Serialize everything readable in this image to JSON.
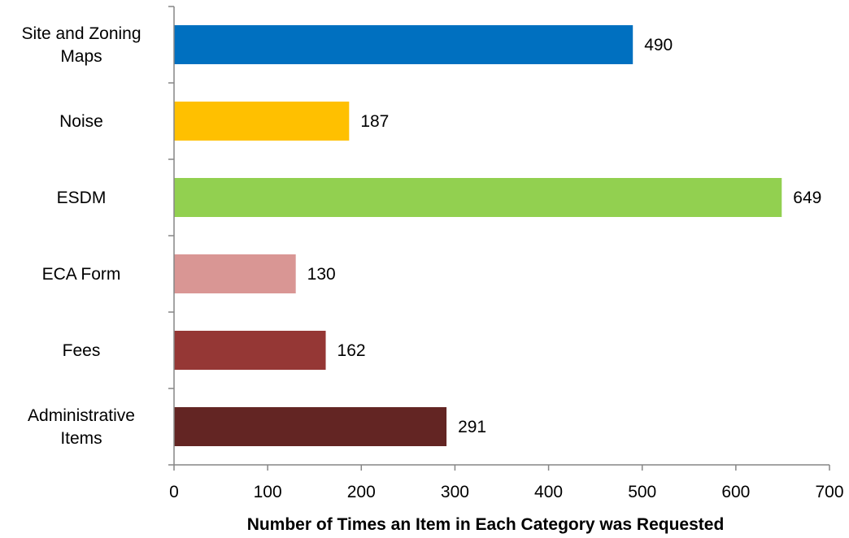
{
  "chart_data": {
    "type": "bar",
    "orientation": "horizontal",
    "title": "",
    "xlabel": "Number of Times an Item in Each Category was Requested",
    "ylabel": "",
    "xlim": [
      0,
      700
    ],
    "x_ticks": [
      0,
      100,
      200,
      300,
      400,
      500,
      600,
      700
    ],
    "grid": false,
    "legend": "none",
    "categories": [
      [
        "Site and Zoning",
        "Maps"
      ],
      [
        "Noise"
      ],
      [
        "ESDM"
      ],
      [
        "ECA Form"
      ],
      [
        "Fees"
      ],
      [
        "Administrative",
        "Items"
      ]
    ],
    "values": [
      490,
      187,
      649,
      130,
      162,
      291
    ],
    "colors": [
      "#0070C0",
      "#FFC000",
      "#92D050",
      "#D99694",
      "#953735",
      "#632523"
    ]
  }
}
